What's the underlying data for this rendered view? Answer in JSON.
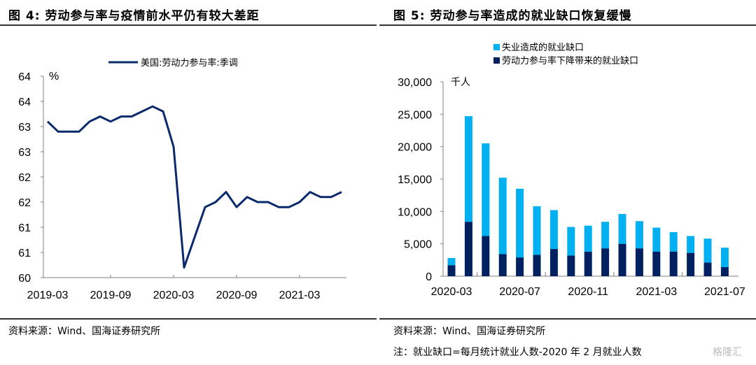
{
  "left": {
    "title": "图 4:  劳动参与率与疫情前水平仍有较大差距",
    "source": "资料来源：Wind、国海证券研究所"
  },
  "right": {
    "title": "图 5:  劳动参与率造成的就业缺口恢复缓慢",
    "source": "资料来源：Wind、国海证券研究所",
    "note": "注：就业缺口=每月统计就业人数-2020 年 2 月就业人数"
  },
  "watermark": "格隆汇",
  "colors": {
    "line": "#0a2a6b",
    "unemp": "#00b0f0",
    "lfpr": "#002060",
    "axis": "#808080"
  },
  "chart_data": [
    {
      "type": "line",
      "title": "劳动参与率与疫情前水平仍有较大差距",
      "ylabel": "%",
      "ylim": [
        60,
        64
      ],
      "yticks": [
        60,
        60.5,
        61,
        61.5,
        62,
        62.5,
        63,
        63.5,
        64
      ],
      "ytick_labels": [
        "60",
        "61",
        "61",
        "62",
        "62",
        "63",
        "63",
        "64",
        "64"
      ],
      "xtick_labels": [
        "2019-03",
        "2019-09",
        "2020-03",
        "2020-09",
        "2021-03"
      ],
      "legend": "top-center",
      "series": [
        {
          "name": "美国:劳动力参与率:季调",
          "x": [
            "2019-03",
            "2019-04",
            "2019-05",
            "2019-06",
            "2019-07",
            "2019-08",
            "2019-09",
            "2019-10",
            "2019-11",
            "2019-12",
            "2020-01",
            "2020-02",
            "2020-03",
            "2020-04",
            "2020-05",
            "2020-06",
            "2020-07",
            "2020-08",
            "2020-09",
            "2020-10",
            "2020-11",
            "2020-12",
            "2021-01",
            "2021-02",
            "2021-03",
            "2021-04",
            "2021-05",
            "2021-06",
            "2021-07"
          ],
          "values": [
            63.1,
            62.9,
            62.9,
            62.9,
            63.1,
            63.2,
            63.1,
            63.2,
            63.2,
            63.3,
            63.4,
            63.3,
            62.6,
            60.2,
            60.8,
            61.4,
            61.5,
            61.7,
            61.4,
            61.6,
            61.5,
            61.5,
            61.4,
            61.4,
            61.5,
            61.7,
            61.6,
            61.6,
            61.7
          ]
        }
      ]
    },
    {
      "type": "bar",
      "stacked": true,
      "title": "劳动参与率造成的就业缺口恢复缓慢",
      "ylabel": "千人",
      "ylim": [
        0,
        30000
      ],
      "yticks": [
        0,
        5000,
        10000,
        15000,
        20000,
        25000,
        30000
      ],
      "ytick_labels": [
        "0",
        "5,000",
        "10,000",
        "15,000",
        "20,000",
        "25,000",
        "30,000"
      ],
      "xtick_labels": [
        "2020-03",
        "2020-07",
        "2020-11",
        "2021-03",
        "2021-07"
      ],
      "categories": [
        "2020-03",
        "2020-04",
        "2020-05",
        "2020-06",
        "2020-07",
        "2020-08",
        "2020-09",
        "2020-10",
        "2020-11",
        "2020-12",
        "2021-01",
        "2021-02",
        "2021-03",
        "2021-04",
        "2021-05",
        "2021-06",
        "2021-07"
      ],
      "legend": "top-center",
      "series": [
        {
          "name": "劳动力参与率下降带来的就业缺口",
          "values": [
            1700,
            8400,
            6200,
            3400,
            2900,
            3300,
            4200,
            3200,
            3800,
            4300,
            5000,
            4300,
            3800,
            3800,
            3600,
            2100,
            1400
          ]
        },
        {
          "name": "失业造成的就业缺口",
          "values": [
            1100,
            16300,
            14300,
            11800,
            10600,
            7500,
            6000,
            4400,
            4000,
            4100,
            4600,
            4200,
            3700,
            3000,
            2600,
            3700,
            3000
          ]
        }
      ]
    }
  ]
}
